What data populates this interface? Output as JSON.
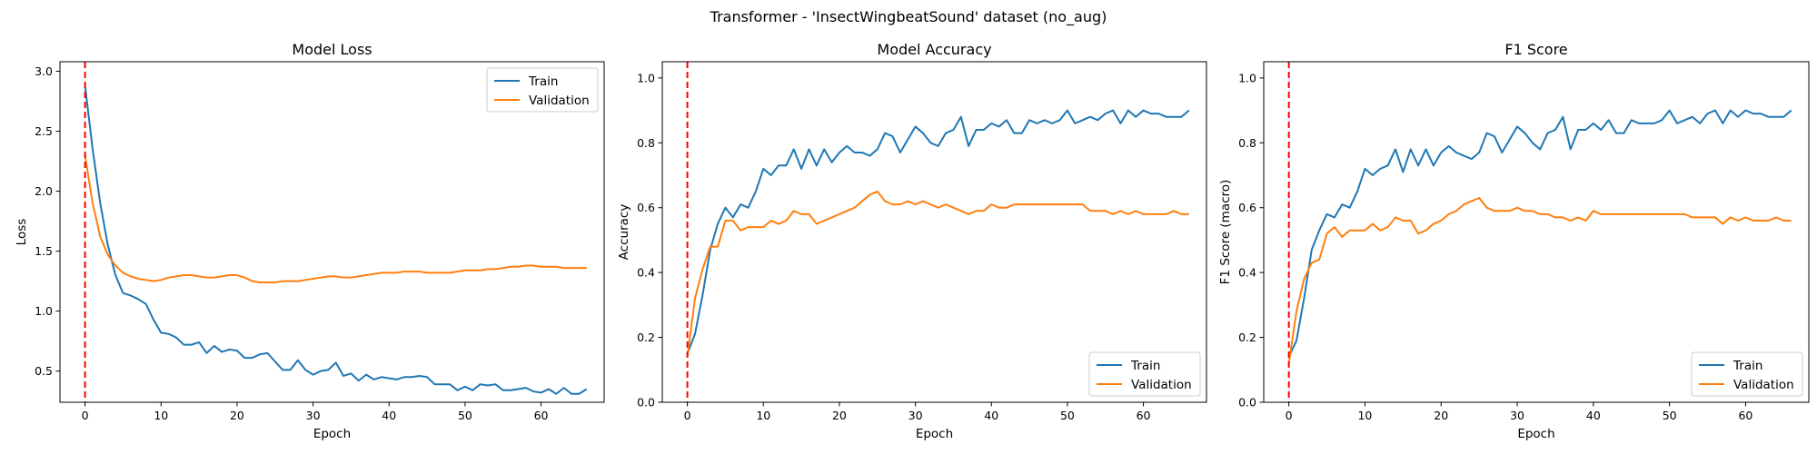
{
  "suptitle": "Transformer - 'InsectWingbeatSound' dataset (no_aug)",
  "colors": {
    "train": "#1f77b4",
    "validation": "#ff7f0e",
    "marker": "#ff0000"
  },
  "chart_data": [
    {
      "type": "line",
      "title": "Model Loss",
      "xlabel": "Epoch",
      "ylabel": "Loss",
      "xlim": [
        -3.3,
        68.3
      ],
      "ylim": [
        0.24,
        3.08
      ],
      "xticks": [
        0,
        10,
        20,
        30,
        40,
        50,
        60
      ],
      "yticks": [
        0.5,
        1.0,
        1.5,
        2.0,
        2.5,
        3.0
      ],
      "ytick_labels": [
        "0.5",
        "1.0",
        "1.5",
        "2.0",
        "2.5",
        "3.0"
      ],
      "legend_loc": "upper right",
      "vline_x": 0,
      "series": [
        {
          "name": "Train",
          "values": [
            2.88,
            2.35,
            1.9,
            1.55,
            1.3,
            1.15,
            1.13,
            1.1,
            1.06,
            0.93,
            0.82,
            0.81,
            0.78,
            0.72,
            0.72,
            0.74,
            0.65,
            0.71,
            0.66,
            0.68,
            0.67,
            0.61,
            0.61,
            0.64,
            0.65,
            0.58,
            0.51,
            0.51,
            0.59,
            0.51,
            0.47,
            0.5,
            0.51,
            0.57,
            0.46,
            0.48,
            0.42,
            0.47,
            0.43,
            0.45,
            0.44,
            0.43,
            0.45,
            0.45,
            0.46,
            0.45,
            0.39,
            0.39,
            0.39,
            0.34,
            0.37,
            0.34,
            0.39,
            0.38,
            0.39,
            0.34,
            0.34,
            0.35,
            0.36,
            0.33,
            0.32,
            0.35,
            0.31,
            0.36,
            0.31,
            0.31,
            0.35
          ]
        },
        {
          "name": "Validation",
          "values": [
            2.3,
            1.9,
            1.62,
            1.47,
            1.38,
            1.32,
            1.29,
            1.27,
            1.26,
            1.25,
            1.26,
            1.28,
            1.29,
            1.3,
            1.3,
            1.29,
            1.28,
            1.28,
            1.29,
            1.3,
            1.3,
            1.28,
            1.25,
            1.24,
            1.24,
            1.24,
            1.25,
            1.25,
            1.25,
            1.26,
            1.27,
            1.28,
            1.29,
            1.29,
            1.28,
            1.28,
            1.29,
            1.3,
            1.31,
            1.32,
            1.32,
            1.32,
            1.33,
            1.33,
            1.33,
            1.32,
            1.32,
            1.32,
            1.32,
            1.33,
            1.34,
            1.34,
            1.34,
            1.35,
            1.35,
            1.36,
            1.37,
            1.37,
            1.38,
            1.38,
            1.37,
            1.37,
            1.37,
            1.36,
            1.36,
            1.36,
            1.36
          ]
        }
      ]
    },
    {
      "type": "line",
      "title": "Model Accuracy",
      "xlabel": "Epoch",
      "ylabel": "Accuracy",
      "xlim": [
        -3.3,
        68.3
      ],
      "ylim": [
        0.0,
        1.05
      ],
      "xticks": [
        0,
        10,
        20,
        30,
        40,
        50,
        60
      ],
      "yticks": [
        0.0,
        0.2,
        0.4,
        0.6,
        0.8,
        1.0
      ],
      "ytick_labels": [
        "0.0",
        "0.2",
        "0.4",
        "0.6",
        "0.8",
        "1.0"
      ],
      "legend_loc": "lower right",
      "vline_x": 0,
      "series": [
        {
          "name": "Train",
          "values": [
            0.15,
            0.21,
            0.33,
            0.47,
            0.55,
            0.6,
            0.57,
            0.61,
            0.6,
            0.65,
            0.72,
            0.7,
            0.73,
            0.73,
            0.78,
            0.72,
            0.78,
            0.73,
            0.78,
            0.74,
            0.77,
            0.79,
            0.77,
            0.77,
            0.76,
            0.78,
            0.83,
            0.82,
            0.77,
            0.81,
            0.85,
            0.83,
            0.8,
            0.79,
            0.83,
            0.84,
            0.88,
            0.79,
            0.84,
            0.84,
            0.86,
            0.85,
            0.87,
            0.83,
            0.83,
            0.87,
            0.86,
            0.87,
            0.86,
            0.87,
            0.9,
            0.86,
            0.87,
            0.88,
            0.87,
            0.89,
            0.9,
            0.86,
            0.9,
            0.88,
            0.9,
            0.89,
            0.89,
            0.88,
            0.88,
            0.88,
            0.9
          ]
        },
        {
          "name": "Validation",
          "values": [
            0.14,
            0.32,
            0.41,
            0.48,
            0.48,
            0.56,
            0.56,
            0.53,
            0.54,
            0.54,
            0.54,
            0.56,
            0.55,
            0.56,
            0.59,
            0.58,
            0.58,
            0.55,
            0.56,
            0.57,
            0.58,
            0.59,
            0.6,
            0.62,
            0.64,
            0.65,
            0.62,
            0.61,
            0.61,
            0.62,
            0.61,
            0.62,
            0.61,
            0.6,
            0.61,
            0.6,
            0.59,
            0.58,
            0.59,
            0.59,
            0.61,
            0.6,
            0.6,
            0.61,
            0.61,
            0.61,
            0.61,
            0.61,
            0.61,
            0.61,
            0.61,
            0.61,
            0.61,
            0.59,
            0.59,
            0.59,
            0.58,
            0.59,
            0.58,
            0.59,
            0.58,
            0.58,
            0.58,
            0.58,
            0.59,
            0.58,
            0.58
          ]
        }
      ]
    },
    {
      "type": "line",
      "title": "F1 Score",
      "xlabel": "Epoch",
      "ylabel": "F1 Score (macro)",
      "xlim": [
        -3.3,
        68.3
      ],
      "ylim": [
        0.0,
        1.05
      ],
      "xticks": [
        0,
        10,
        20,
        30,
        40,
        50,
        60
      ],
      "yticks": [
        0.0,
        0.2,
        0.4,
        0.6,
        0.8,
        1.0
      ],
      "ytick_labels": [
        "0.0",
        "0.2",
        "0.4",
        "0.6",
        "0.8",
        "1.0"
      ],
      "legend_loc": "lower right",
      "vline_x": 0,
      "series": [
        {
          "name": "Train",
          "values": [
            0.14,
            0.19,
            0.32,
            0.47,
            0.53,
            0.58,
            0.57,
            0.61,
            0.6,
            0.65,
            0.72,
            0.7,
            0.72,
            0.73,
            0.78,
            0.71,
            0.78,
            0.73,
            0.78,
            0.73,
            0.77,
            0.79,
            0.77,
            0.76,
            0.75,
            0.77,
            0.83,
            0.82,
            0.77,
            0.81,
            0.85,
            0.83,
            0.8,
            0.78,
            0.83,
            0.84,
            0.88,
            0.78,
            0.84,
            0.84,
            0.86,
            0.84,
            0.87,
            0.83,
            0.83,
            0.87,
            0.86,
            0.86,
            0.86,
            0.87,
            0.9,
            0.86,
            0.87,
            0.88,
            0.86,
            0.89,
            0.9,
            0.86,
            0.9,
            0.88,
            0.9,
            0.89,
            0.89,
            0.88,
            0.88,
            0.88,
            0.9
          ]
        },
        {
          "name": "Validation",
          "values": [
            0.12,
            0.28,
            0.38,
            0.43,
            0.44,
            0.52,
            0.54,
            0.51,
            0.53,
            0.53,
            0.53,
            0.55,
            0.53,
            0.54,
            0.57,
            0.56,
            0.56,
            0.52,
            0.53,
            0.55,
            0.56,
            0.58,
            0.59,
            0.61,
            0.62,
            0.63,
            0.6,
            0.59,
            0.59,
            0.59,
            0.6,
            0.59,
            0.59,
            0.58,
            0.58,
            0.57,
            0.57,
            0.56,
            0.57,
            0.56,
            0.59,
            0.58,
            0.58,
            0.58,
            0.58,
            0.58,
            0.58,
            0.58,
            0.58,
            0.58,
            0.58,
            0.58,
            0.58,
            0.57,
            0.57,
            0.57,
            0.57,
            0.55,
            0.57,
            0.56,
            0.57,
            0.56,
            0.56,
            0.56,
            0.57,
            0.56,
            0.56
          ]
        }
      ]
    }
  ]
}
